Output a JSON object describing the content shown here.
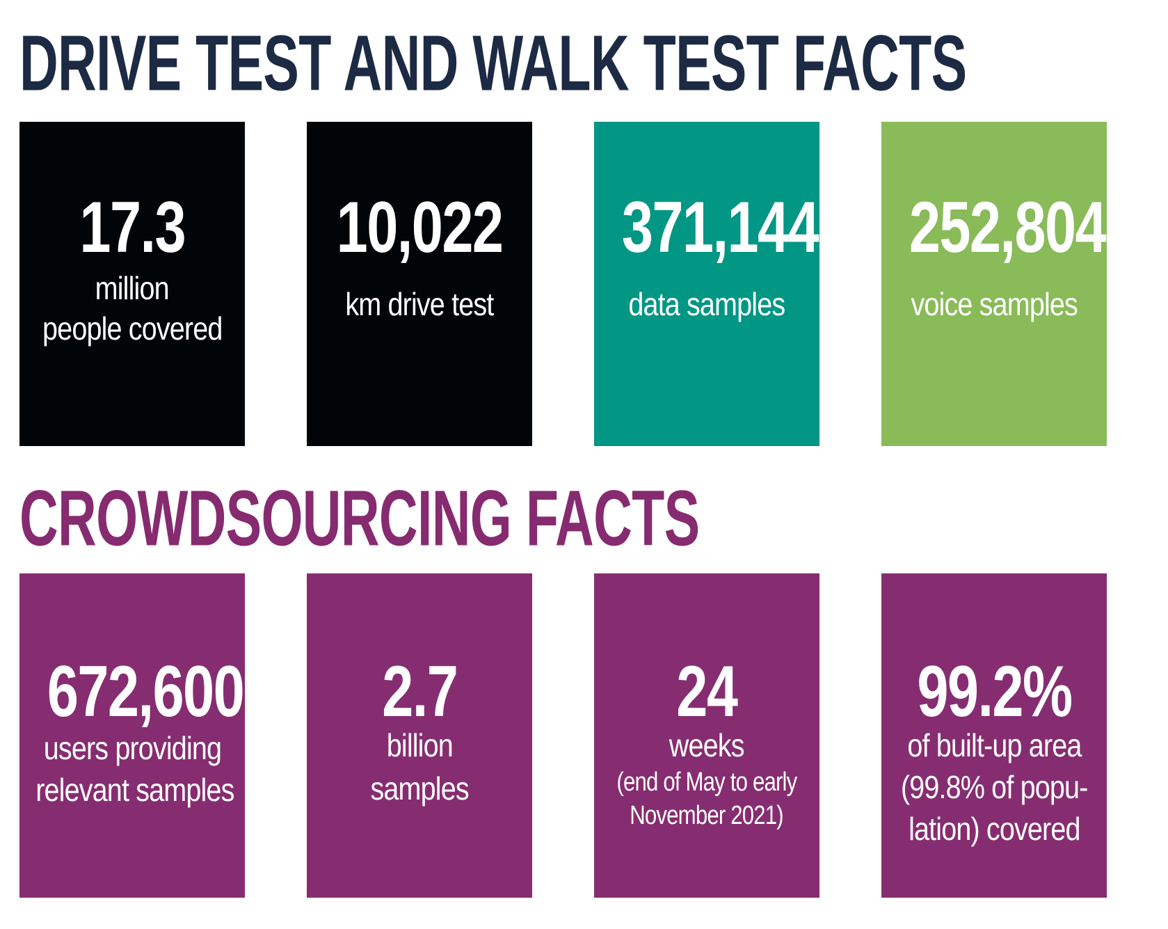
{
  "headings": {
    "drive_walk": "DRIVE TEST AND WALK TEST FACTS",
    "crowdsourcing": "CROWDSOURCING FACTS"
  },
  "colors": {
    "drive_heading": "#1c2a44",
    "crowd_heading": "#862b70",
    "black_card": "#020508",
    "teal_card": "#029684",
    "green_card": "#89bb58",
    "purple_card": "#862d71"
  },
  "drive_cards": [
    {
      "value": "17.3",
      "line1": "million",
      "line2": "people covered"
    },
    {
      "value": "10,022",
      "line1": "km drive test"
    },
    {
      "value": "371,144",
      "line1": "data samples"
    },
    {
      "value": "252,804",
      "line1": "voice samples"
    }
  ],
  "crowd_cards": [
    {
      "value": "672,600",
      "line1": "users providing",
      "line2": "relevant samples"
    },
    {
      "value": "2.7",
      "line1": "billion",
      "line2": "samples"
    },
    {
      "value": "24",
      "line1": "weeks",
      "note1": "(end of May to early",
      "note2": "November 2021)"
    },
    {
      "value": "99.2%",
      "line1": "of built-up area",
      "line2": "(99.8% of popu-",
      "line3": "lation) covered"
    }
  ]
}
